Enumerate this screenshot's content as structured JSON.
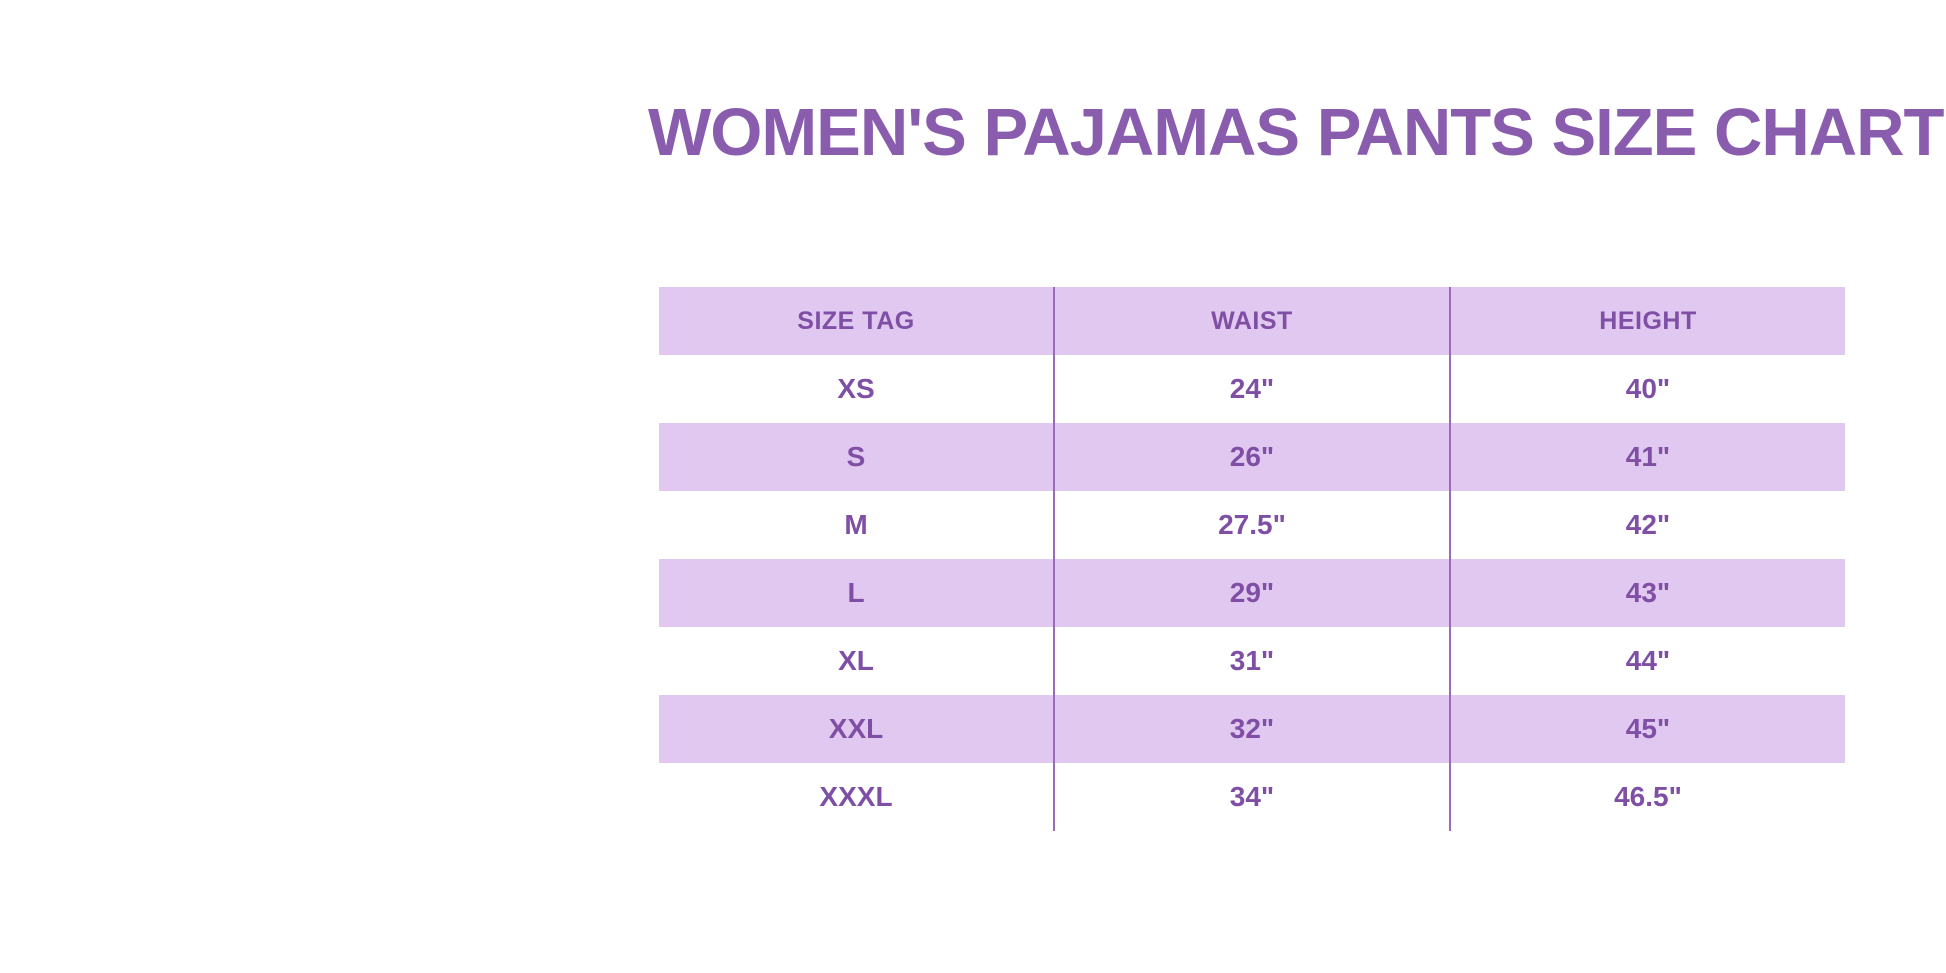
{
  "title": {
    "text": "WOMEN'S PAJAMAS PANTS SIZE CHART"
  },
  "table": {
    "columns": [
      "SIZE TAG",
      "WAIST",
      "HEIGHT"
    ],
    "rows": [
      [
        "XS",
        "24\"",
        "40\""
      ],
      [
        "S",
        "26\"",
        "41\""
      ],
      [
        "M",
        "27.5\"",
        "42\""
      ],
      [
        "L",
        "29\"",
        "43\""
      ],
      [
        "XL",
        "31\"",
        "44\""
      ],
      [
        "XXL",
        "32\"",
        "45\""
      ],
      [
        "XXXL",
        "34\"",
        "46.5\""
      ]
    ]
  },
  "colors": {
    "background": "#ffffff",
    "title_purple": "#8a5cae",
    "text_purple": "#7e4fa4",
    "row_lavender": "#e1c8f0",
    "separator_purple": "#9b6abc"
  },
  "chart_data": {
    "type": "table",
    "title": "WOMEN'S PAJAMAS PANTS SIZE CHART",
    "columns": [
      "SIZE TAG",
      "WAIST",
      "HEIGHT"
    ],
    "rows": [
      {
        "size_tag": "XS",
        "waist_in": 24,
        "height_in": 40
      },
      {
        "size_tag": "S",
        "waist_in": 26,
        "height_in": 41
      },
      {
        "size_tag": "M",
        "waist_in": 27.5,
        "height_in": 42
      },
      {
        "size_tag": "L",
        "waist_in": 29,
        "height_in": 43
      },
      {
        "size_tag": "XL",
        "waist_in": 31,
        "height_in": 44
      },
      {
        "size_tag": "XXL",
        "waist_in": 32,
        "height_in": 45
      },
      {
        "size_tag": "XXXL",
        "waist_in": 34,
        "height_in": 46.5
      }
    ],
    "units": "inches",
    "layout_hints": {
      "striped_rows": true,
      "header_background": "#e1c8f0",
      "stripe_background": "#e1c8f0",
      "column_separators_only": true
    }
  }
}
